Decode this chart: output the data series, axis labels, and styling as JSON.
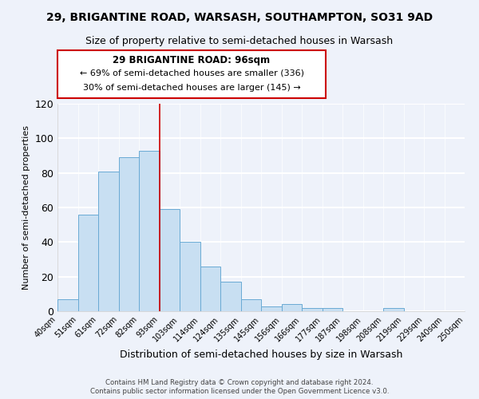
{
  "title": "29, BRIGANTINE ROAD, WARSASH, SOUTHAMPTON, SO31 9AD",
  "subtitle": "Size of property relative to semi-detached houses in Warsash",
  "xlabel": "Distribution of semi-detached houses by size in Warsash",
  "ylabel": "Number of semi-detached properties",
  "bin_labels": [
    "40sqm",
    "51sqm",
    "61sqm",
    "72sqm",
    "82sqm",
    "93sqm",
    "103sqm",
    "114sqm",
    "124sqm",
    "135sqm",
    "145sqm",
    "156sqm",
    "166sqm",
    "177sqm",
    "187sqm",
    "198sqm",
    "208sqm",
    "219sqm",
    "229sqm",
    "240sqm",
    "250sqm"
  ],
  "bar_values": [
    7,
    56,
    81,
    89,
    93,
    59,
    40,
    26,
    17,
    7,
    3,
    4,
    2,
    2,
    0,
    0,
    2,
    0,
    0,
    0
  ],
  "bar_color": "#c8dff2",
  "bar_edge_color": "#6aaad4",
  "ylim": [
    0,
    120
  ],
  "yticks": [
    0,
    20,
    40,
    60,
    80,
    100,
    120
  ],
  "vline_bin_idx": 5,
  "annotation_title": "29 BRIGANTINE ROAD: 96sqm",
  "annotation_line1": "← 69% of semi-detached houses are smaller (336)",
  "annotation_line2": "30% of semi-detached houses are larger (145) →",
  "footer1": "Contains HM Land Registry data © Crown copyright and database right 2024.",
  "footer2": "Contains public sector information licensed under the Open Government Licence v3.0.",
  "bg_color": "#eef2fa",
  "grid_color": "#ffffff",
  "vline_color": "#cc0000",
  "annotation_box_color": "#ffffff",
  "annotation_box_edge": "#cc0000",
  "title_fontsize": 10,
  "subtitle_fontsize": 9
}
